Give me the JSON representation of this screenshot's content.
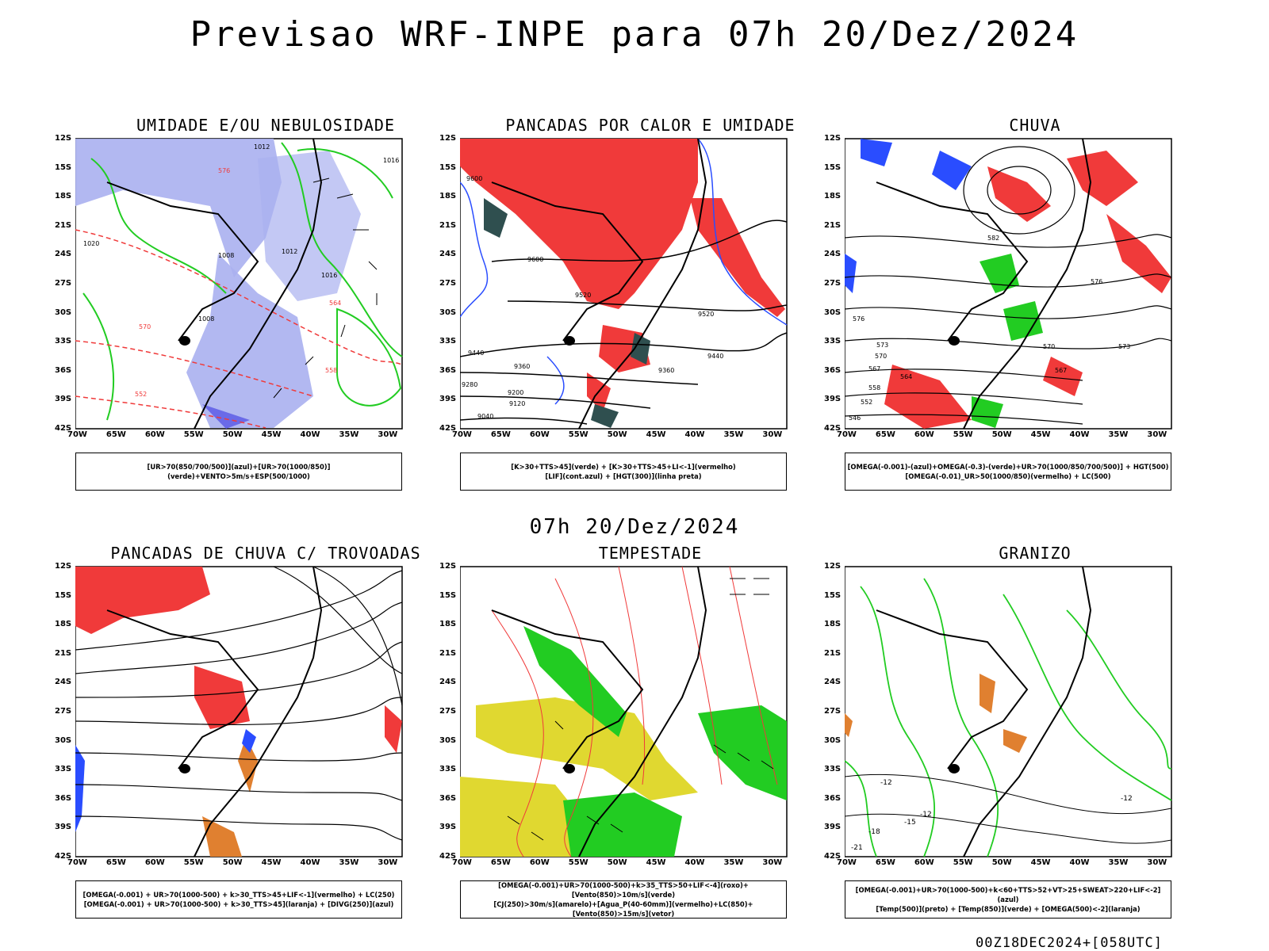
{
  "main_title": "Previsao WRF-INPE  para 07h 20/Dez/2024",
  "subtitle": "07h 20/Dez/2024",
  "footer": "00Z18DEC2024+[058UTC]",
  "lat_ticks": [
    "12S",
    "15S",
    "18S",
    "21S",
    "24S",
    "27S",
    "30S",
    "33S",
    "36S",
    "39S",
    "42S"
  ],
  "lon_ticks": [
    "70W",
    "65W",
    "60W",
    "55W",
    "50W",
    "45W",
    "40W",
    "35W",
    "30W"
  ],
  "panels": [
    {
      "title": "UMIDADE E/OU NEBULOSIDADE",
      "legend": [
        "[UR>70(850/700/500)](azul)+[UR>70(1000/850)](verde)+VENTO>5m/s+ESP(500/1000)"
      ],
      "labels": [
        "1012",
        "1016",
        "1020",
        "1008",
        "1012",
        "1016",
        "1008",
        "570",
        "576",
        "564",
        "558",
        "552"
      ]
    },
    {
      "title": "PANCADAS POR CALOR E UMIDADE",
      "legend": [
        "[K>30+TTS>45](verde) + [K>30+TTS>45+LI<-1](vermelho)",
        "[LIF](cont.azul) + [HGT(300)](linha preta)"
      ],
      "labels": [
        "9600",
        "9600",
        "9520",
        "9440",
        "9360",
        "9280",
        "9200",
        "9120",
        "9040",
        "9520",
        "9440",
        "9360"
      ]
    },
    {
      "title": "CHUVA",
      "legend": [
        "[OMEGA(-0.001)-(azul)+OMEGA(-0.3)-(verde)+UR>70(1000/850/700/500)] + HGT(500)",
        "[OMEGA(-0.01)_UR>50(1000/850)(vermelho) + LC(500)"
      ],
      "labels": [
        "582",
        "576",
        "573",
        "570",
        "567",
        "564",
        "558",
        "552",
        "546",
        "576",
        "573",
        "570",
        "567"
      ]
    },
    {
      "title": "PANCADAS DE CHUVA C/ TROVOADAS",
      "legend": [
        "[OMEGA(-0.001) + UR>70(1000-500) + k>30_TTS>45+LIF<-1](vermelho) + LC(250)",
        "[OMEGA(-0.001) + UR>70(1000-500) + k>30_TTS>45](laranja) + [DIVG(250)](azul)"
      ],
      "labels": []
    },
    {
      "title": "TEMPESTADE",
      "legend": [
        "[OMEGA(-0.001)+UR>70(1000-500)+k>35_TTS>50+LIF<-4](roxo)+[Vento(850)>10m/s](verde)",
        "[CJ(250)>30m/s](amarelo)+[Agua_P(40-60mm)](vermelho)+LC(850)+[Vento(850)>15m/s](vetor)"
      ],
      "labels": []
    },
    {
      "title": "GRANIZO",
      "legend": [
        "[OMEGA(-0.001)+UR>70(1000-500)+k<60+TTS>52+VT>25+SWEAT>220+LIF<-2](azul)",
        "[Temp(500)](preto) + [Temp(850)](verde) + [OMEGA(500)<-2](laranja)"
      ],
      "labels": [
        "-12",
        "-12",
        "-15",
        "-18",
        "-21",
        "-12"
      ]
    }
  ],
  "colors": {
    "black": "#000000",
    "red": "#f03a3a",
    "green": "#22cc22",
    "blue": "#2a4dff",
    "lavender": "#aab0f0",
    "darkteal": "#2f4f4f",
    "yellow": "#e0d830",
    "orange": "#e08030"
  }
}
